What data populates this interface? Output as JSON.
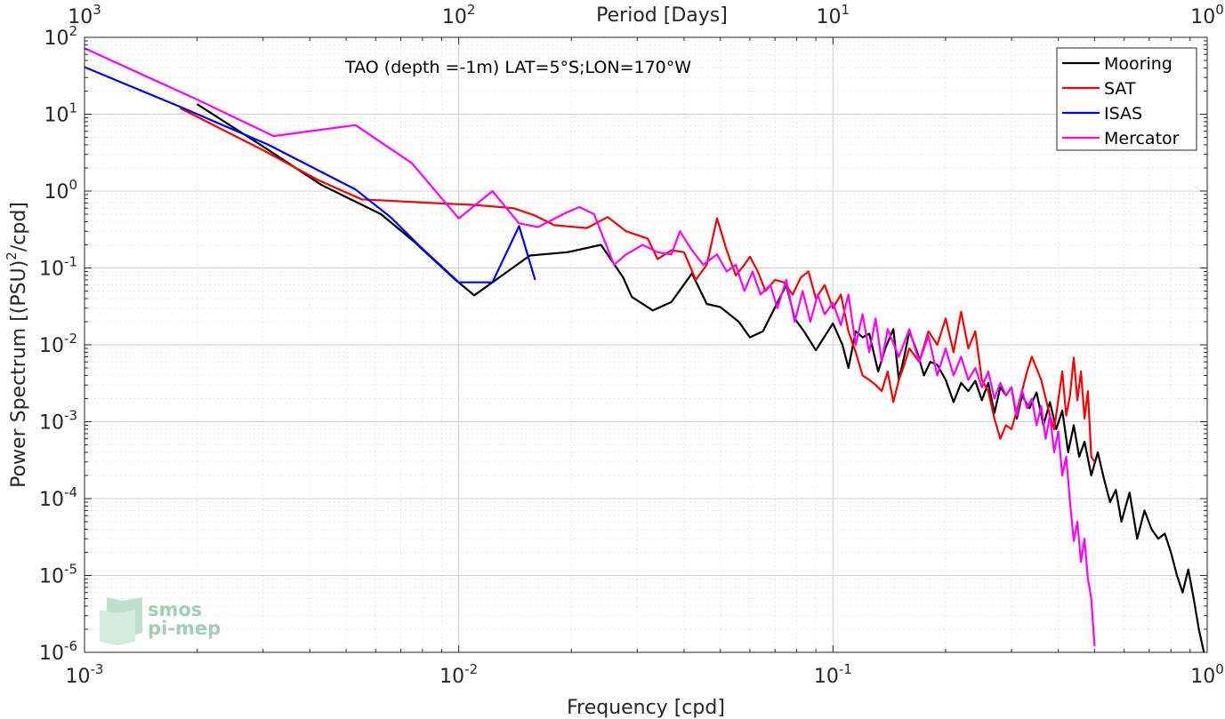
{
  "chart_data": {
    "type": "line",
    "xscale": "log",
    "yscale": "log",
    "xlim": [
      0.001,
      1
    ],
    "ylim": [
      1e-06,
      100
    ],
    "xlabel": "Frequency [cpd]",
    "ylabel": "Power Spectrum [(PSU)",
    "ylabel_sup": "2",
    "ylabel_tail": "/cpd]",
    "top_axis_label": "Period [Days]",
    "annotation": "TAO (depth =-1m) LAT=5°S;LON=170°W",
    "grid": true,
    "legend_position": "top-right",
    "x_ticks": [
      {
        "base": "10",
        "exp": "-3"
      },
      {
        "base": "10",
        "exp": "-2"
      },
      {
        "base": "10",
        "exp": "-1"
      },
      {
        "base": "10",
        "exp": "0"
      }
    ],
    "top_ticks": [
      {
        "base": "10",
        "exp": "3"
      },
      {
        "base": "10",
        "exp": "2"
      },
      {
        "base": "10",
        "exp": "1"
      },
      {
        "base": "10",
        "exp": "0"
      }
    ],
    "y_ticks": [
      {
        "base": "10",
        "exp": "2"
      },
      {
        "base": "10",
        "exp": "1"
      },
      {
        "base": "10",
        "exp": "0"
      },
      {
        "base": "10",
        "exp": "-1"
      },
      {
        "base": "10",
        "exp": "-2"
      },
      {
        "base": "10",
        "exp": "-3"
      },
      {
        "base": "10",
        "exp": "-4"
      },
      {
        "base": "10",
        "exp": "-5"
      },
      {
        "base": "10",
        "exp": "-6"
      }
    ],
    "series": [
      {
        "name": "Mooring",
        "color": "#000000",
        "points": [
          [
            0.002,
            13.5
          ],
          [
            0.003,
            3.8
          ],
          [
            0.0043,
            1.2
          ],
          [
            0.0062,
            0.5
          ],
          [
            0.0076,
            0.22
          ],
          [
            0.0098,
            0.07
          ],
          [
            0.011,
            0.044
          ],
          [
            0.0135,
            0.09
          ],
          [
            0.0155,
            0.145
          ],
          [
            0.0195,
            0.16
          ],
          [
            0.024,
            0.2
          ],
          [
            0.0275,
            0.075
          ],
          [
            0.029,
            0.042
          ],
          [
            0.033,
            0.028
          ],
          [
            0.037,
            0.036
          ],
          [
            0.042,
            0.085
          ],
          [
            0.046,
            0.034
          ],
          [
            0.05,
            0.031
          ],
          [
            0.056,
            0.02
          ],
          [
            0.06,
            0.0125
          ],
          [
            0.065,
            0.015
          ],
          [
            0.075,
            0.06
          ],
          [
            0.079,
            0.022
          ],
          [
            0.084,
            0.0145
          ],
          [
            0.09,
            0.0085
          ],
          [
            0.1,
            0.019
          ],
          [
            0.106,
            0.01
          ],
          [
            0.11,
            0.005
          ],
          [
            0.115,
            0.015
          ],
          [
            0.12,
            0.0125
          ],
          [
            0.125,
            0.014
          ],
          [
            0.132,
            0.0045
          ],
          [
            0.138,
            0.009
          ],
          [
            0.145,
            0.016
          ],
          [
            0.15,
            0.0035
          ],
          [
            0.155,
            0.007
          ],
          [
            0.16,
            0.015
          ],
          [
            0.168,
            0.008
          ],
          [
            0.175,
            0.004
          ],
          [
            0.182,
            0.006
          ],
          [
            0.19,
            0.0055
          ],
          [
            0.2,
            0.0035
          ],
          [
            0.21,
            0.0018
          ],
          [
            0.22,
            0.0032
          ],
          [
            0.23,
            0.0025
          ],
          [
            0.24,
            0.0034
          ],
          [
            0.25,
            0.0019
          ],
          [
            0.26,
            0.0032
          ],
          [
            0.27,
            0.0013
          ],
          [
            0.28,
            0.0028
          ],
          [
            0.29,
            0.0022
          ],
          [
            0.3,
            0.0028
          ],
          [
            0.31,
            0.0011
          ],
          [
            0.32,
            0.0022
          ],
          [
            0.335,
            0.0015
          ],
          [
            0.35,
            0.0024
          ],
          [
            0.365,
            0.0009
          ],
          [
            0.38,
            0.0018
          ],
          [
            0.395,
            0.0008
          ],
          [
            0.41,
            0.0014
          ],
          [
            0.425,
            0.0004
          ],
          [
            0.44,
            0.0009
          ],
          [
            0.455,
            0.00035
          ],
          [
            0.47,
            0.00055
          ],
          [
            0.49,
            0.0002
          ],
          [
            0.51,
            0.0004
          ],
          [
            0.53,
            0.00018
          ],
          [
            0.55,
            9e-05
          ],
          [
            0.57,
            0.00013
          ],
          [
            0.59,
            5e-05
          ],
          [
            0.62,
            0.00012
          ],
          [
            0.65,
            3e-05
          ],
          [
            0.68,
            7e-05
          ],
          [
            0.71,
            4e-05
          ],
          [
            0.74,
            3e-05
          ],
          [
            0.77,
            3.5e-05
          ],
          [
            0.8,
            2e-05
          ],
          [
            0.83,
            1e-05
          ],
          [
            0.86,
            6e-06
          ],
          [
            0.89,
            1.2e-05
          ],
          [
            0.92,
            5e-06
          ],
          [
            0.95,
            2e-06
          ],
          [
            0.98,
            1e-06
          ]
        ]
      },
      {
        "name": "SAT",
        "color": "#ff0000",
        "points": [
          [
            0.0018,
            12.0
          ],
          [
            0.003,
            3.4
          ],
          [
            0.0042,
            1.4
          ],
          [
            0.0055,
            0.78
          ],
          [
            0.0085,
            0.7
          ],
          [
            0.011,
            0.66
          ],
          [
            0.014,
            0.6
          ],
          [
            0.016,
            0.48
          ],
          [
            0.018,
            0.36
          ],
          [
            0.022,
            0.33
          ],
          [
            0.025,
            0.46
          ],
          [
            0.028,
            0.3
          ],
          [
            0.032,
            0.24
          ],
          [
            0.034,
            0.13
          ],
          [
            0.037,
            0.17
          ],
          [
            0.04,
            0.16
          ],
          [
            0.043,
            0.07
          ],
          [
            0.046,
            0.11
          ],
          [
            0.049,
            0.44
          ],
          [
            0.052,
            0.17
          ],
          [
            0.055,
            0.08
          ],
          [
            0.058,
            0.11
          ],
          [
            0.06,
            0.14
          ],
          [
            0.063,
            0.09
          ],
          [
            0.066,
            0.05
          ],
          [
            0.07,
            0.07
          ],
          [
            0.074,
            0.065
          ],
          [
            0.078,
            0.045
          ],
          [
            0.082,
            0.075
          ],
          [
            0.086,
            0.09
          ],
          [
            0.09,
            0.04
          ],
          [
            0.095,
            0.06
          ],
          [
            0.1,
            0.03
          ],
          [
            0.105,
            0.045
          ],
          [
            0.11,
            0.015
          ],
          [
            0.115,
            0.008
          ],
          [
            0.12,
            0.004
          ],
          [
            0.125,
            0.0035
          ],
          [
            0.13,
            0.003
          ],
          [
            0.135,
            0.0025
          ],
          [
            0.14,
            0.0045
          ],
          [
            0.145,
            0.0018
          ],
          [
            0.15,
            0.0035
          ],
          [
            0.155,
            0.0055
          ],
          [
            0.16,
            0.009
          ],
          [
            0.17,
            0.006
          ],
          [
            0.18,
            0.015
          ],
          [
            0.19,
            0.01
          ],
          [
            0.2,
            0.022
          ],
          [
            0.21,
            0.008
          ],
          [
            0.22,
            0.027
          ],
          [
            0.23,
            0.009
          ],
          [
            0.24,
            0.015
          ],
          [
            0.25,
            0.0035
          ],
          [
            0.26,
            0.0025
          ],
          [
            0.27,
            0.0011
          ],
          [
            0.28,
            0.0006
          ],
          [
            0.29,
            0.0009
          ],
          [
            0.3,
            0.0008
          ],
          [
            0.31,
            0.0014
          ],
          [
            0.32,
            0.0025
          ],
          [
            0.33,
            0.0045
          ],
          [
            0.34,
            0.007
          ],
          [
            0.36,
            0.0035
          ],
          [
            0.38,
            0.0012
          ],
          [
            0.39,
            0.0008
          ],
          [
            0.41,
            0.0045
          ],
          [
            0.42,
            0.0012
          ],
          [
            0.43,
            0.0022
          ],
          [
            0.44,
            0.0068
          ],
          [
            0.45,
            0.0019
          ],
          [
            0.46,
            0.0045
          ],
          [
            0.47,
            0.0011
          ],
          [
            0.48,
            0.0025
          ],
          [
            0.49,
            0.00035
          ],
          [
            0.5,
            0.0003
          ]
        ]
      },
      {
        "name": "ISAS",
        "color": "#0000ff",
        "points": [
          [
            0.001,
            41
          ],
          [
            0.0018,
            12.5
          ],
          [
            0.0031,
            4.0
          ],
          [
            0.0053,
            1.05
          ],
          [
            0.0066,
            0.45
          ],
          [
            0.0078,
            0.2
          ],
          [
            0.01,
            0.065
          ],
          [
            0.0123,
            0.065
          ],
          [
            0.0145,
            0.35
          ],
          [
            0.016,
            0.07
          ]
        ]
      },
      {
        "name": "Mercator",
        "color": "#ff00ff",
        "points": [
          [
            0.001,
            72
          ],
          [
            0.002,
            15.5
          ],
          [
            0.0032,
            5.2
          ],
          [
            0.0053,
            7.2
          ],
          [
            0.0075,
            2.3
          ],
          [
            0.01,
            0.44
          ],
          [
            0.0123,
            1.0
          ],
          [
            0.0145,
            0.38
          ],
          [
            0.0163,
            0.34
          ],
          [
            0.0193,
            0.52
          ],
          [
            0.021,
            0.62
          ],
          [
            0.023,
            0.5
          ],
          [
            0.026,
            0.11
          ],
          [
            0.028,
            0.15
          ],
          [
            0.031,
            0.2
          ],
          [
            0.034,
            0.16
          ],
          [
            0.037,
            0.15
          ],
          [
            0.039,
            0.3
          ],
          [
            0.042,
            0.17
          ],
          [
            0.045,
            0.11
          ],
          [
            0.049,
            0.15
          ],
          [
            0.052,
            0.09
          ],
          [
            0.055,
            0.11
          ],
          [
            0.058,
            0.05
          ],
          [
            0.061,
            0.09
          ],
          [
            0.064,
            0.045
          ],
          [
            0.068,
            0.06
          ],
          [
            0.071,
            0.03
          ],
          [
            0.075,
            0.07
          ],
          [
            0.079,
            0.02
          ],
          [
            0.083,
            0.05
          ],
          [
            0.087,
            0.02
          ],
          [
            0.091,
            0.045
          ],
          [
            0.095,
            0.025
          ],
          [
            0.1,
            0.035
          ],
          [
            0.105,
            0.018
          ],
          [
            0.11,
            0.045
          ],
          [
            0.115,
            0.01
          ],
          [
            0.12,
            0.025
          ],
          [
            0.125,
            0.008
          ],
          [
            0.13,
            0.022
          ],
          [
            0.135,
            0.006
          ],
          [
            0.14,
            0.016
          ],
          [
            0.15,
            0.007
          ],
          [
            0.16,
            0.016
          ],
          [
            0.17,
            0.006
          ],
          [
            0.18,
            0.013
          ],
          [
            0.19,
            0.004
          ],
          [
            0.2,
            0.009
          ],
          [
            0.21,
            0.004
          ],
          [
            0.22,
            0.007
          ],
          [
            0.23,
            0.0035
          ],
          [
            0.24,
            0.005
          ],
          [
            0.25,
            0.0028
          ],
          [
            0.26,
            0.0045
          ],
          [
            0.27,
            0.002
          ],
          [
            0.28,
            0.0032
          ],
          [
            0.29,
            0.0022
          ],
          [
            0.3,
            0.0028
          ],
          [
            0.31,
            0.0012
          ],
          [
            0.32,
            0.0026
          ],
          [
            0.33,
            0.0015
          ],
          [
            0.34,
            0.002
          ],
          [
            0.35,
            0.0009
          ],
          [
            0.36,
            0.0016
          ],
          [
            0.37,
            0.0006
          ],
          [
            0.38,
            0.0012
          ],
          [
            0.39,
            0.0004
          ],
          [
            0.4,
            0.00075
          ],
          [
            0.41,
            0.0002
          ],
          [
            0.42,
            0.00035
          ],
          [
            0.43,
            9e-05
          ],
          [
            0.44,
            2.8e-05
          ],
          [
            0.45,
            5e-05
          ],
          [
            0.46,
            1.5e-05
          ],
          [
            0.47,
            3e-05
          ],
          [
            0.48,
            9e-06
          ],
          [
            0.49,
            5e-06
          ],
          [
            0.5,
            1.2e-06
          ]
        ]
      }
    ]
  },
  "logo": {
    "line1": "smos",
    "line2": "pi-mep"
  }
}
